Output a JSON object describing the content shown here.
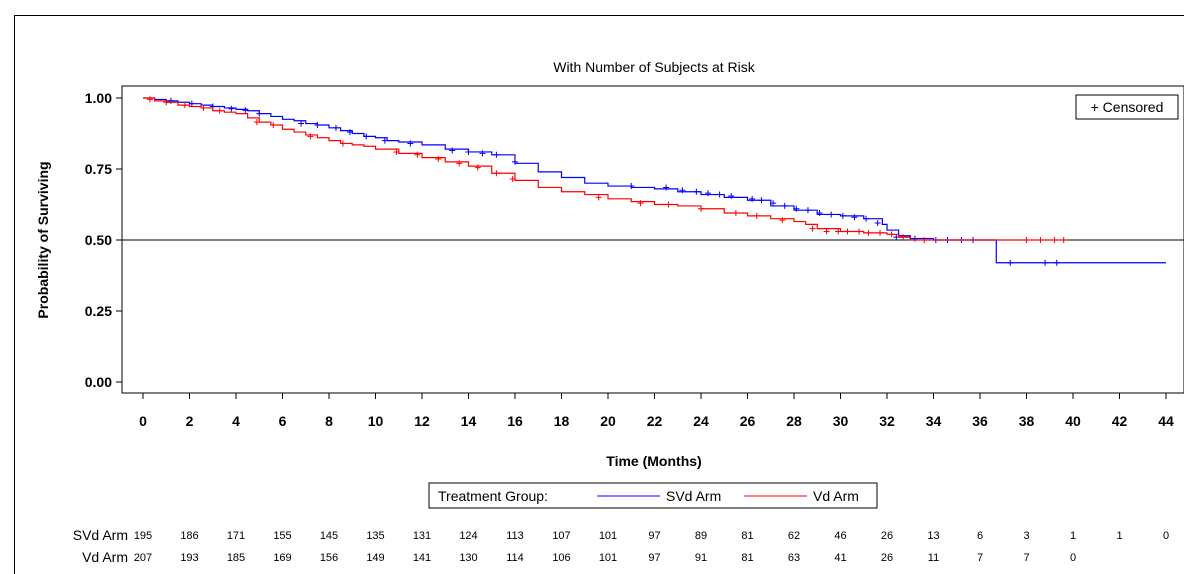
{
  "chart_data": {
    "type": "line",
    "subtitle": "With Number of Subjects at Risk",
    "xlabel": "Time (Months)",
    "ylabel": "Probability of Surviving",
    "xlim": [
      0,
      44
    ],
    "ylim": [
      0,
      1
    ],
    "x_ticks": [
      "0",
      "2",
      "4",
      "6",
      "8",
      "10",
      "12",
      "14",
      "16",
      "18",
      "20",
      "22",
      "24",
      "26",
      "28",
      "30",
      "32",
      "34",
      "36",
      "38",
      "40",
      "42",
      "44"
    ],
    "y_ticks": [
      "0.00",
      "0.25",
      "0.50",
      "0.75",
      "1.00"
    ],
    "reference_line": 0.5,
    "censor_legend": "+ Censored",
    "legend_title": "Treatment Group:",
    "series": [
      {
        "name": "SVd Arm",
        "color": "#0000ff",
        "x": [
          0,
          0.5,
          1,
          1.5,
          2,
          2.5,
          3,
          3.5,
          4,
          4.5,
          5,
          5.5,
          6,
          6.5,
          7,
          7.5,
          8,
          8.5,
          9,
          9.5,
          10,
          10.5,
          11,
          12,
          13,
          14,
          15,
          16,
          17,
          18,
          19,
          20,
          21,
          22,
          23,
          24,
          25,
          26,
          27,
          28,
          29,
          30,
          31,
          31.8,
          32,
          32.5,
          33,
          34,
          35,
          36,
          36.6,
          36.7,
          38,
          39,
          40,
          42,
          44
        ],
        "y": [
          1.0,
          0.995,
          0.99,
          0.985,
          0.98,
          0.975,
          0.97,
          0.965,
          0.96,
          0.955,
          0.945,
          0.935,
          0.925,
          0.92,
          0.91,
          0.905,
          0.895,
          0.885,
          0.875,
          0.865,
          0.86,
          0.85,
          0.845,
          0.835,
          0.82,
          0.81,
          0.8,
          0.77,
          0.74,
          0.72,
          0.7,
          0.69,
          0.685,
          0.68,
          0.67,
          0.66,
          0.65,
          0.64,
          0.62,
          0.605,
          0.59,
          0.585,
          0.575,
          0.555,
          0.535,
          0.515,
          0.505,
          0.5,
          0.5,
          0.5,
          0.5,
          0.42,
          0.42,
          0.42,
          0.42,
          0.42,
          0.42
        ],
        "censor_x": [
          1.2,
          2.1,
          3.0,
          3.8,
          4.4,
          5.0,
          6.8,
          7.5,
          8.3,
          8.9,
          9.6,
          10.4,
          11.5,
          13.3,
          14.0,
          14.6,
          15.2,
          16.0,
          21.0,
          22.5,
          23.2,
          23.8,
          24.3,
          24.8,
          25.3,
          26.2,
          26.6,
          27.1,
          27.6,
          28.1,
          28.6,
          29.1,
          29.6,
          30.1,
          30.6,
          31.1,
          31.6,
          32.4,
          33.2,
          34.1,
          34.6,
          35.2,
          35.7,
          37.3,
          38.8,
          39.3
        ],
        "censor_y": [
          0.99,
          0.98,
          0.97,
          0.962,
          0.957,
          0.945,
          0.91,
          0.905,
          0.895,
          0.88,
          0.865,
          0.85,
          0.84,
          0.815,
          0.81,
          0.805,
          0.8,
          0.775,
          0.69,
          0.685,
          0.675,
          0.67,
          0.665,
          0.66,
          0.655,
          0.645,
          0.64,
          0.63,
          0.62,
          0.61,
          0.605,
          0.595,
          0.59,
          0.585,
          0.58,
          0.575,
          0.56,
          0.51,
          0.505,
          0.5,
          0.5,
          0.5,
          0.5,
          0.42,
          0.42,
          0.42
        ]
      },
      {
        "name": "Vd Arm",
        "color": "#ff0000",
        "x": [
          0,
          0.5,
          1,
          1.5,
          2,
          2.5,
          3,
          3.5,
          4,
          4.5,
          5,
          5.5,
          6,
          6.5,
          7,
          7.5,
          8,
          8.5,
          9,
          9.5,
          10,
          11,
          12,
          13,
          14,
          15,
          16,
          17,
          18,
          19,
          20,
          21,
          22,
          23,
          24,
          25,
          26,
          27,
          28,
          28.5,
          29,
          30,
          31,
          32,
          32.5,
          33,
          34,
          36,
          37,
          38,
          39,
          39.7
        ],
        "y": [
          1.0,
          0.99,
          0.985,
          0.975,
          0.97,
          0.965,
          0.955,
          0.95,
          0.945,
          0.93,
          0.915,
          0.905,
          0.89,
          0.88,
          0.87,
          0.86,
          0.85,
          0.84,
          0.835,
          0.83,
          0.82,
          0.805,
          0.79,
          0.775,
          0.76,
          0.735,
          0.71,
          0.685,
          0.67,
          0.66,
          0.645,
          0.635,
          0.625,
          0.62,
          0.61,
          0.595,
          0.585,
          0.575,
          0.565,
          0.555,
          0.54,
          0.53,
          0.525,
          0.52,
          0.51,
          0.5,
          0.5,
          0.5,
          0.5,
          0.5,
          0.5,
          0.5
        ],
        "censor_x": [
          0.3,
          1.0,
          1.8,
          2.6,
          3.3,
          4.9,
          5.6,
          7.2,
          8.6,
          10.9,
          11.8,
          12.7,
          13.6,
          14.4,
          15.2,
          15.9,
          19.6,
          21.4,
          22.6,
          24.0,
          25.5,
          26.4,
          27.5,
          28.8,
          29.4,
          29.9,
          30.3,
          30.8,
          31.2,
          31.7,
          32.2,
          32.7,
          33.6,
          38.0,
          38.6,
          39.2,
          39.6
        ],
        "censor_y": [
          0.995,
          0.985,
          0.975,
          0.965,
          0.955,
          0.915,
          0.905,
          0.865,
          0.84,
          0.81,
          0.8,
          0.785,
          0.77,
          0.755,
          0.735,
          0.715,
          0.65,
          0.63,
          0.625,
          0.61,
          0.595,
          0.585,
          0.57,
          0.54,
          0.53,
          0.53,
          0.53,
          0.53,
          0.525,
          0.525,
          0.52,
          0.51,
          0.5,
          0.5,
          0.5,
          0.5,
          0.5
        ]
      }
    ],
    "at_risk": {
      "rows": [
        {
          "name": "SVd Arm",
          "values": [
            "195",
            "186",
            "171",
            "155",
            "145",
            "135",
            "131",
            "124",
            "113",
            "107",
            "101",
            "97",
            "89",
            "81",
            "62",
            "46",
            "26",
            "13",
            "6",
            "3",
            "1",
            "1",
            "0"
          ]
        },
        {
          "name": "Vd Arm",
          "values": [
            "207",
            "193",
            "185",
            "169",
            "156",
            "149",
            "141",
            "130",
            "114",
            "106",
            "101",
            "97",
            "91",
            "81",
            "63",
            "41",
            "26",
            "11",
            "7",
            "7",
            "0"
          ]
        }
      ]
    }
  }
}
